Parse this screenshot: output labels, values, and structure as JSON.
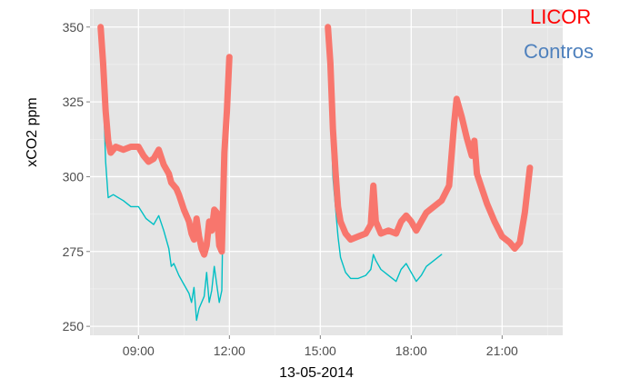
{
  "chart_data": {
    "type": "line",
    "xlabel": "13-05-2014",
    "ylabel": "xCO2 ppm",
    "xlim_hours": [
      7.4,
      23.0
    ],
    "ylim": [
      247,
      356
    ],
    "x_ticks": [
      {
        "value": 9,
        "label": "09:00"
      },
      {
        "value": 12,
        "label": "12:00"
      },
      {
        "value": 15,
        "label": "15:00"
      },
      {
        "value": 18,
        "label": "18:00"
      },
      {
        "value": 21,
        "label": "21:00"
      }
    ],
    "y_ticks": [
      250,
      275,
      300,
      325,
      350
    ],
    "grid": true,
    "legend": {
      "position": "top-right",
      "style": "colored text"
    },
    "series": [
      {
        "name": "LICOR",
        "color": "#f8766d",
        "segments": [
          [
            [
              "07:45",
              350
            ],
            [
              "07:50",
              338
            ],
            [
              "07:55",
              322
            ],
            [
              "08:00",
              312
            ],
            [
              "08:05",
              308
            ],
            [
              "08:15",
              310
            ],
            [
              "08:30",
              309
            ],
            [
              "08:45",
              310
            ],
            [
              "09:00",
              310
            ],
            [
              "09:10",
              307
            ],
            [
              "09:20",
              305
            ],
            [
              "09:30",
              306
            ],
            [
              "09:40",
              309
            ],
            [
              "09:50",
              304
            ],
            [
              "10:00",
              301
            ],
            [
              "10:05",
              298
            ],
            [
              "10:15",
              296
            ],
            [
              "10:20",
              294
            ],
            [
              "10:30",
              289
            ],
            [
              "10:40",
              285
            ],
            [
              "10:45",
              281
            ],
            [
              "10:50",
              279
            ],
            [
              "10:55",
              286
            ],
            [
              "11:00",
              280
            ],
            [
              "11:05",
              276
            ],
            [
              "11:10",
              274
            ],
            [
              "11:15",
              277
            ],
            [
              "11:20",
              285
            ],
            [
              "11:25",
              282
            ],
            [
              "11:30",
              289
            ],
            [
              "11:35",
              288
            ],
            [
              "11:40",
              277
            ],
            [
              "11:45",
              275
            ],
            [
              "11:50",
              308
            ],
            [
              "11:55",
              322
            ],
            [
              "12:00",
              340
            ]
          ],
          [
            [
              "15:15",
              350
            ],
            [
              "15:20",
              338
            ],
            [
              "15:25",
              316
            ],
            [
              "15:30",
              302
            ],
            [
              "15:35",
              290
            ],
            [
              "15:40",
              285
            ],
            [
              "15:50",
              281
            ],
            [
              "16:00",
              279
            ],
            [
              "16:15",
              280
            ],
            [
              "16:30",
              281
            ],
            [
              "16:40",
              284
            ],
            [
              "16:45",
              297
            ],
            [
              "16:50",
              285
            ],
            [
              "17:00",
              281
            ],
            [
              "17:15",
              282
            ],
            [
              "17:30",
              281
            ],
            [
              "17:40",
              285
            ],
            [
              "17:50",
              287
            ],
            [
              "18:00",
              285
            ],
            [
              "18:10",
              282
            ],
            [
              "18:20",
              285
            ],
            [
              "18:30",
              288
            ],
            [
              "18:45",
              290
            ],
            [
              "19:00",
              292
            ],
            [
              "19:15",
              297
            ],
            [
              "19:25",
              318
            ],
            [
              "19:30",
              326
            ],
            [
              "19:40",
              320
            ],
            [
              "19:50",
              313
            ],
            [
              "20:00",
              307
            ],
            [
              "20:05",
              312
            ],
            [
              "20:10",
              301
            ],
            [
              "20:20",
              296
            ],
            [
              "20:30",
              291
            ],
            [
              "20:45",
              285
            ],
            [
              "21:00",
              280
            ],
            [
              "21:15",
              278
            ],
            [
              "21:25",
              276
            ],
            [
              "21:35",
              278
            ],
            [
              "21:45",
              288
            ],
            [
              "21:55",
              303
            ]
          ]
        ]
      },
      {
        "name": "Contros",
        "color": "#00bfc4",
        "segments": [
          [
            [
              "07:45",
              348
            ],
            [
              "07:50",
              330
            ],
            [
              "07:55",
              305
            ],
            [
              "08:00",
              293
            ],
            [
              "08:10",
              294
            ],
            [
              "08:30",
              292
            ],
            [
              "08:45",
              290
            ],
            [
              "09:00",
              290
            ],
            [
              "09:15",
              286
            ],
            [
              "09:30",
              284
            ],
            [
              "09:40",
              287
            ],
            [
              "09:50",
              282
            ],
            [
              "10:00",
              276
            ],
            [
              "10:05",
              270
            ],
            [
              "10:10",
              271
            ],
            [
              "10:20",
              267
            ],
            [
              "10:30",
              264
            ],
            [
              "10:40",
              261
            ],
            [
              "10:45",
              258
            ],
            [
              "10:50",
              263
            ],
            [
              "10:55",
              252
            ],
            [
              "11:00",
              256
            ],
            [
              "11:10",
              260
            ],
            [
              "11:15",
              268
            ],
            [
              "11:20",
              258
            ],
            [
              "11:25",
              262
            ],
            [
              "11:30",
              270
            ],
            [
              "11:35",
              264
            ],
            [
              "11:40",
              258
            ],
            [
              "11:45",
              262
            ],
            [
              "11:50",
              318
            ],
            [
              "11:55",
              332
            ],
            [
              "12:00",
              340
            ]
          ],
          [
            [
              "15:15",
              348
            ],
            [
              "15:20",
              326
            ],
            [
              "15:25",
              300
            ],
            [
              "15:30",
              290
            ],
            [
              "15:35",
              280
            ],
            [
              "15:40",
              273
            ],
            [
              "15:50",
              268
            ],
            [
              "16:00",
              266
            ],
            [
              "16:15",
              266
            ],
            [
              "16:30",
              267
            ],
            [
              "16:40",
              269
            ],
            [
              "16:45",
              274
            ],
            [
              "16:50",
              272
            ],
            [
              "17:00",
              269
            ],
            [
              "17:15",
              267
            ],
            [
              "17:30",
              265
            ],
            [
              "17:40",
              269
            ],
            [
              "17:50",
              271
            ],
            [
              "18:00",
              268
            ],
            [
              "18:10",
              265
            ],
            [
              "18:20",
              267
            ],
            [
              "18:30",
              270
            ],
            [
              "18:45",
              272
            ],
            [
              "19:00",
              274
            ]
          ]
        ]
      }
    ]
  }
}
